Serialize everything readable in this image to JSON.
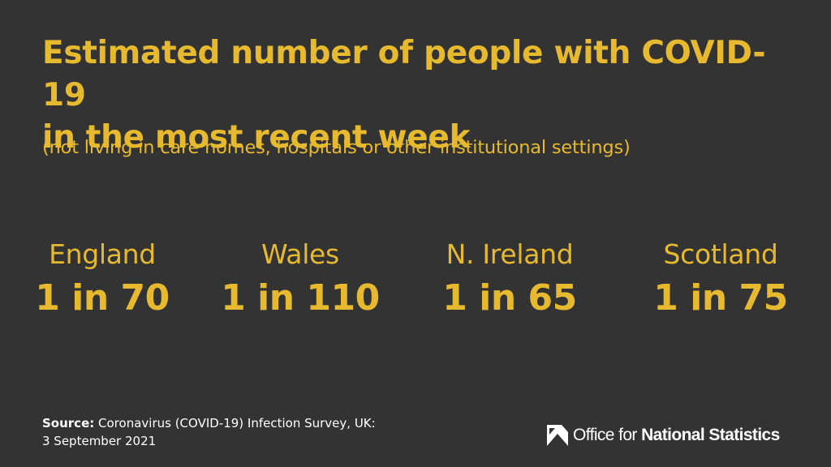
{
  "title": {
    "line1": "Estimated number of people with COVID-19",
    "line2": "in the most recent week"
  },
  "subtitle": "(not living in care homes, hospitals or other institutional settings)",
  "regions": [
    {
      "name": "England",
      "value": "1 in 70"
    },
    {
      "name": "Wales",
      "value": "1 in 110"
    },
    {
      "name": "N. Ireland",
      "value": "1 in 65"
    },
    {
      "name": "Scotland",
      "value": "1 in 75"
    }
  ],
  "source": {
    "label": "Source:",
    "text": "Coronavirus (COVID-19) Infection Survey, UK:",
    "date": "3 September 2021"
  },
  "logo": {
    "icon": "ons-logo-icon",
    "prefix": "Office for",
    "name": "National Statistics"
  },
  "colors": {
    "background": "#333333",
    "accent": "#e6b92e",
    "text": "#ffffff"
  }
}
